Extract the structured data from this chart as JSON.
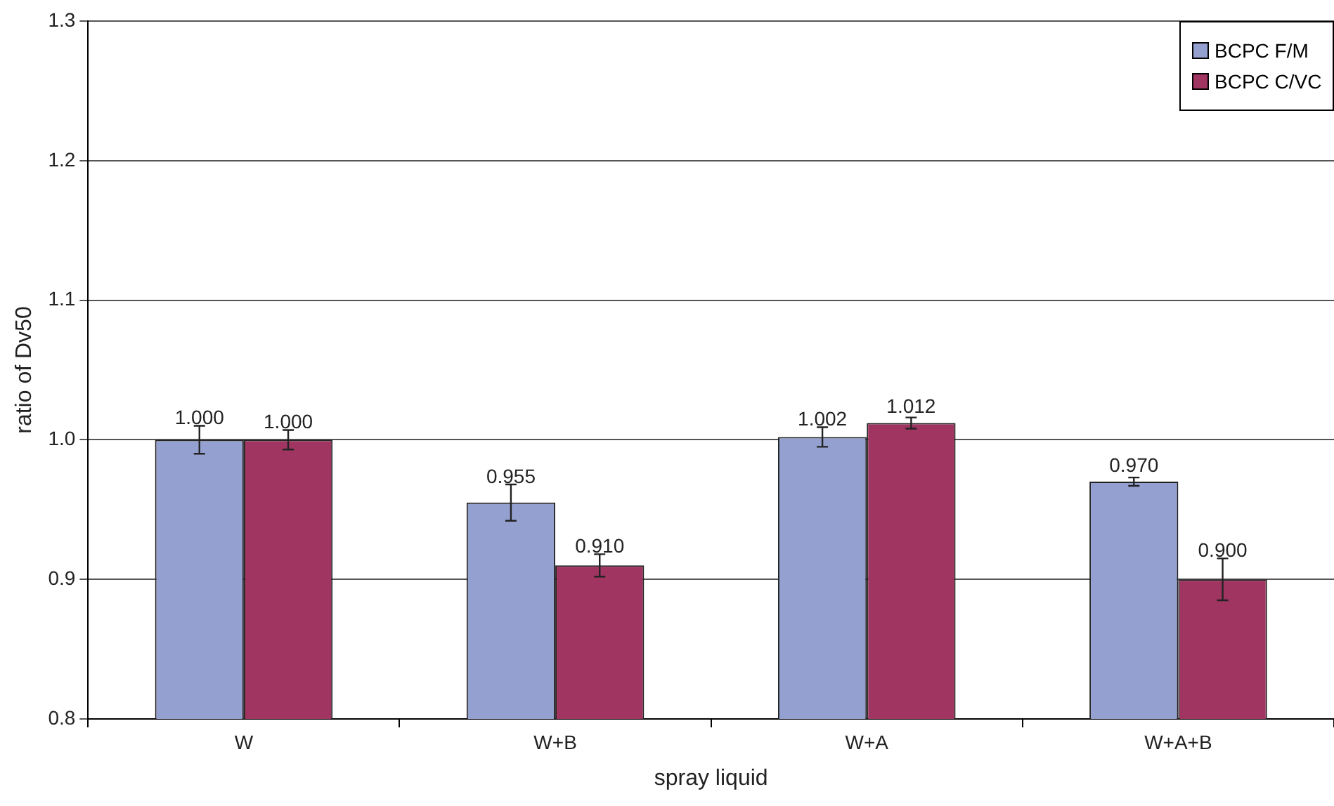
{
  "chart_data": {
    "type": "bar",
    "xlabel": "spray liquid",
    "ylabel": "ratio of Dv50",
    "categories": [
      "W",
      "W+B",
      "W+A",
      "W+A+B"
    ],
    "series": [
      {
        "name": "BCPC F/M",
        "color": "#94a0d0",
        "values": [
          1.0,
          0.955,
          1.002,
          0.97
        ],
        "errors": [
          0.01,
          0.013,
          0.007,
          0.003
        ],
        "value_labels": [
          "1.000",
          "0.955",
          "1.002",
          "0.970"
        ]
      },
      {
        "name": "BCPC C/VC",
        "color": "#a03562",
        "values": [
          1.0,
          0.91,
          1.012,
          0.9
        ],
        "errors": [
          0.007,
          0.008,
          0.004,
          0.015
        ],
        "value_labels": [
          "1.000",
          "0.910",
          "1.012",
          "0.900"
        ]
      }
    ],
    "ylim": [
      0.8,
      1.3
    ],
    "yticks": [
      {
        "value": 0.8,
        "label": "0.8"
      },
      {
        "value": 0.9,
        "label": "0.9"
      },
      {
        "value": 1.0,
        "label": "1.0"
      },
      {
        "value": 1.1,
        "label": "1.1"
      },
      {
        "value": 1.2,
        "label": "1.2"
      },
      {
        "value": 1.3,
        "label": "1.3"
      }
    ],
    "grid": "y",
    "legend": "top right"
  }
}
